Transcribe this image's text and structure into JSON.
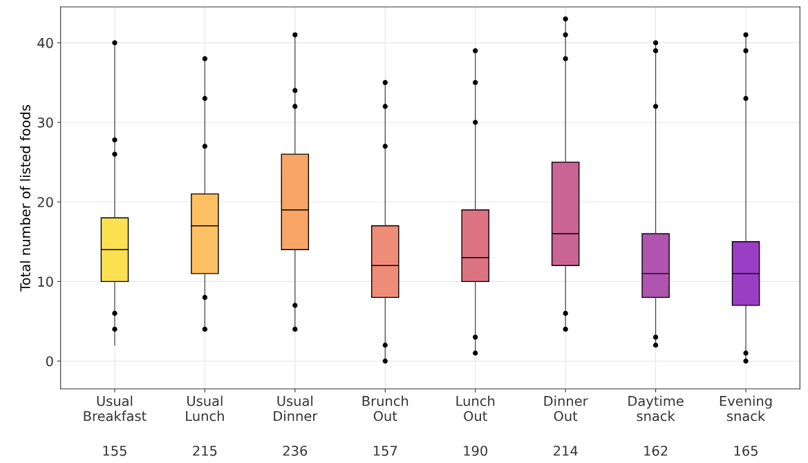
{
  "chart_data": {
    "type": "box",
    "ylabel": "Total number of listed foods",
    "categories": [
      "Usual\nBreakfast",
      "Usual\nLunch",
      "Usual\nDinner",
      "Brunch\nOut",
      "Lunch\nOut",
      "Dinner\nOut",
      "Daytime\nsnack",
      "Evening\nsnack"
    ],
    "colors": [
      "#fde052",
      "#fdc062",
      "#f8a566",
      "#ef8c78",
      "#dc7383",
      "#ca6495",
      "#b054b0",
      "#9a3ec4"
    ],
    "boxes": [
      {
        "low": 2,
        "q1": 10,
        "median": 14,
        "q3": 18,
        "high": 40
      },
      {
        "low": 4,
        "q1": 11,
        "median": 17,
        "q3": 21,
        "high": 38
      },
      {
        "low": 4,
        "q1": 14,
        "median": 19,
        "q3": 26,
        "high": 41
      },
      {
        "low": 0,
        "q1": 8,
        "median": 12,
        "q3": 17,
        "high": 35
      },
      {
        "low": 1,
        "q1": 10,
        "median": 13,
        "q3": 19,
        "high": 39
      },
      {
        "low": 4,
        "q1": 12,
        "median": 16,
        "q3": 25,
        "high": 43
      },
      {
        "low": 2,
        "q1": 8,
        "median": 11,
        "q3": 16,
        "high": 40
      },
      {
        "low": 0,
        "q1": 7,
        "median": 11,
        "q3": 15,
        "high": 41
      }
    ],
    "series": [
      {
        "type": "scatter",
        "color": "#000000",
        "x": [
          "Usual\nBreakfast",
          "Usual\nBreakfast",
          "Usual\nBreakfast",
          "Usual\nBreakfast",
          "Usual\nBreakfast",
          "Usual\nLunch",
          "Usual\nLunch",
          "Usual\nLunch",
          "Usual\nLunch",
          "Usual\nLunch",
          "Usual\nDinner",
          "Usual\nDinner",
          "Usual\nDinner",
          "Usual\nDinner",
          "Usual\nDinner",
          "Brunch\nOut",
          "Brunch\nOut",
          "Brunch\nOut",
          "Brunch\nOut",
          "Brunch\nOut",
          "Lunch\nOut",
          "Lunch\nOut",
          "Lunch\nOut",
          "Lunch\nOut",
          "Lunch\nOut",
          "Dinner\nOut",
          "Dinner\nOut",
          "Dinner\nOut",
          "Dinner\nOut",
          "Dinner\nOut",
          "Daytime\nsnack",
          "Daytime\nsnack",
          "Daytime\nsnack",
          "Daytime\nsnack",
          "Daytime\nsnack",
          "Evening\nsnack",
          "Evening\nsnack",
          "Evening\nsnack",
          "Evening\nsnack",
          "Evening\nsnack"
        ],
        "values": [
          40,
          27.8,
          26,
          4,
          6,
          38,
          33,
          27,
          4,
          8,
          41,
          34,
          32,
          7,
          4,
          35,
          32,
          27,
          0,
          2,
          39,
          35,
          30,
          1,
          3,
          43,
          41,
          38,
          4,
          6,
          40,
          39,
          32,
          2,
          3,
          41,
          39,
          33,
          0,
          1
        ]
      }
    ],
    "ylim": [
      -3.5,
      44.5
    ],
    "yticks": [
      0,
      10,
      20,
      30,
      40
    ],
    "grid": true,
    "annotations": [
      "155",
      "215",
      "236",
      "157",
      "190",
      "214",
      "162",
      "165"
    ]
  }
}
